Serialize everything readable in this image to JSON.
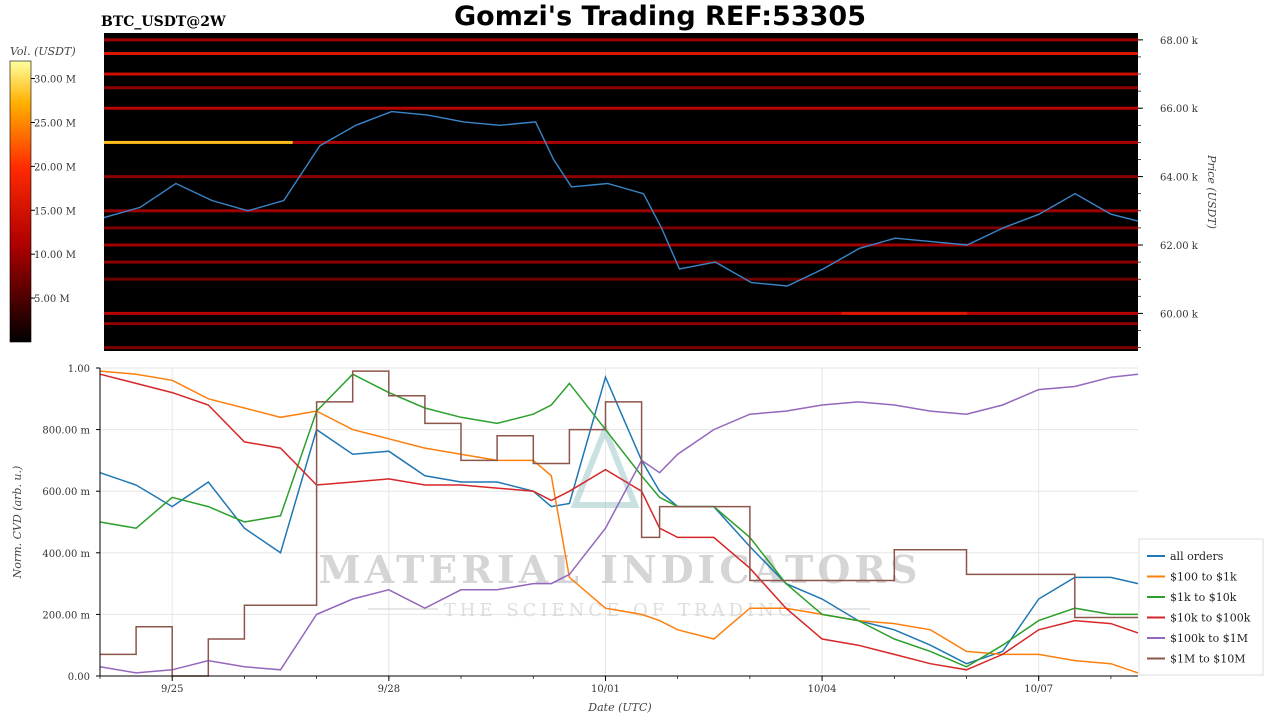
{
  "header": {
    "title": "Gomzi's Trading REF:53305",
    "symbol": "BTC_USDT@2W"
  },
  "watermark": {
    "main": "MATERIAL INDICATORS",
    "sub": "THE SCIENCE OF TRADING"
  },
  "colors": {
    "heatmap_bg": "#000000",
    "price_line": "#3a86c8",
    "all_orders": "#1f77b4",
    "r100_1k": "#ff7f0e",
    "r1k_10k": "#2ca02c",
    "r10k_100k": "#d62728",
    "r100k_1m": "#9467bd",
    "r1m_10m": "#8c564b"
  },
  "chart_data": [
    {
      "type": "heatmap",
      "colorbar_label": "Vol. (USDT)",
      "colorbar_ticks": [
        "5.00 M",
        "10.00 M",
        "15.00 M",
        "20.00 M",
        "25.00 M",
        "30.00 M"
      ],
      "colorbar_values": [
        5,
        10,
        15,
        20,
        25,
        30
      ],
      "colorbar_range": [
        0,
        32
      ],
      "ylabel": "Price (USDT)",
      "y_ticks": [
        "60.00 k",
        "62.00 k",
        "64.00 k",
        "66.00 k",
        "68.00 k"
      ],
      "y_tick_values": [
        60000,
        62000,
        64000,
        66000,
        68000
      ],
      "ylim": [
        58900,
        68200
      ],
      "xlim": [
        "2024-09-24T00:00",
        "2024-10-08T09:00"
      ],
      "price_series": {
        "x": [
          "2024-09-24T00:00",
          "2024-09-24T12:00",
          "2024-09-25T00:00",
          "2024-09-25T12:00",
          "2024-09-26T00:00",
          "2024-09-26T12:00",
          "2024-09-27T00:00",
          "2024-09-27T12:00",
          "2024-09-28T00:00",
          "2024-09-28T12:00",
          "2024-09-29T00:00",
          "2024-09-29T12:00",
          "2024-09-30T00:00",
          "2024-09-30T06:00",
          "2024-09-30T12:00",
          "2024-10-01T00:00",
          "2024-10-01T12:00",
          "2024-10-01T18:00",
          "2024-10-02T00:00",
          "2024-10-02T12:00",
          "2024-10-03T00:00",
          "2024-10-03T12:00",
          "2024-10-04T00:00",
          "2024-10-04T12:00",
          "2024-10-05T00:00",
          "2024-10-05T12:00",
          "2024-10-06T00:00",
          "2024-10-06T12:00",
          "2024-10-07T00:00",
          "2024-10-07T12:00",
          "2024-10-08T00:00",
          "2024-10-08T09:00"
        ],
        "y": [
          62800,
          63100,
          63800,
          63300,
          63000,
          63300,
          64900,
          65500,
          65900,
          65800,
          65600,
          65500,
          65600,
          64500,
          63700,
          63800,
          63500,
          62500,
          61300,
          61500,
          60900,
          60800,
          61300,
          61900,
          62200,
          62100,
          62000,
          62500,
          62900,
          63500,
          62900,
          62700
        ]
      },
      "bands": [
        {
          "price": 68000,
          "from": "2024-09-24T00:00",
          "to": "2024-10-08T09:00",
          "value": 10
        },
        {
          "price": 67600,
          "from": "2024-09-24T00:00",
          "to": "2024-10-08T09:00",
          "value": 16
        },
        {
          "price": 67000,
          "from": "2024-09-24T00:00",
          "to": "2024-10-08T09:00",
          "value": 14
        },
        {
          "price": 66600,
          "from": "2024-09-24T00:00",
          "to": "2024-10-08T09:00",
          "value": 9
        },
        {
          "price": 66000,
          "from": "2024-09-24T00:00",
          "to": "2024-10-08T09:00",
          "value": 12
        },
        {
          "price": 65000,
          "from": "2024-09-24T00:00",
          "to": "2024-09-26T15:00",
          "value": 28
        },
        {
          "price": 65000,
          "from": "2024-09-26T15:00",
          "to": "2024-10-08T09:00",
          "value": 11
        },
        {
          "price": 64000,
          "from": "2024-09-24T00:00",
          "to": "2024-10-08T09:00",
          "value": 9
        },
        {
          "price": 63000,
          "from": "2024-09-24T00:00",
          "to": "2024-10-08T09:00",
          "value": 10
        },
        {
          "price": 62500,
          "from": "2024-09-24T00:00",
          "to": "2024-10-08T09:00",
          "value": 8
        },
        {
          "price": 62000,
          "from": "2024-09-24T00:00",
          "to": "2024-10-08T09:00",
          "value": 10
        },
        {
          "price": 61500,
          "from": "2024-09-24T00:00",
          "to": "2024-10-08T09:00",
          "value": 9
        },
        {
          "price": 61000,
          "from": "2024-09-24T00:00",
          "to": "2024-10-08T09:00",
          "value": 7
        },
        {
          "price": 60000,
          "from": "2024-09-24T00:00",
          "to": "2024-10-08T09:00",
          "value": 12
        },
        {
          "price": 60000,
          "from": "2024-10-04T06:00",
          "to": "2024-10-06T00:00",
          "value": 16
        },
        {
          "price": 59700,
          "from": "2024-09-24T00:00",
          "to": "2024-10-08T09:00",
          "value": 9
        },
        {
          "price": 59000,
          "from": "2024-09-24T00:00",
          "to": "2024-10-08T09:00",
          "value": 8
        }
      ]
    },
    {
      "type": "line",
      "ylabel": "Norm. CVD (arb. u.)",
      "xlabel": "Date (UTC)",
      "x_ticks": [
        "9/25",
        "9/28",
        "10/01",
        "10/04",
        "10/07"
      ],
      "x_tick_values": [
        "2024-09-25T00:00",
        "2024-09-28T00:00",
        "2024-10-01T00:00",
        "2024-10-04T00:00",
        "2024-10-07T00:00"
      ],
      "y_ticks": [
        "0.00",
        "200.00 m",
        "400.00 m",
        "600.00 m",
        "800.00 m",
        "1.00"
      ],
      "y_tick_values": [
        0,
        0.2,
        0.4,
        0.6,
        0.8,
        1.0
      ],
      "ylim": [
        0,
        1
      ],
      "xlim": [
        "2024-09-24T00:00",
        "2024-10-08T09:00"
      ],
      "grid": true,
      "legend_position": "bottom-right",
      "x": [
        "2024-09-24T00:00",
        "2024-09-24T12:00",
        "2024-09-25T00:00",
        "2024-09-25T12:00",
        "2024-09-26T00:00",
        "2024-09-26T12:00",
        "2024-09-27T00:00",
        "2024-09-27T12:00",
        "2024-09-28T00:00",
        "2024-09-28T12:00",
        "2024-09-29T00:00",
        "2024-09-29T12:00",
        "2024-09-30T00:00",
        "2024-09-30T06:00",
        "2024-09-30T12:00",
        "2024-10-01T00:00",
        "2024-10-01T12:00",
        "2024-10-01T18:00",
        "2024-10-02T00:00",
        "2024-10-02T12:00",
        "2024-10-03T00:00",
        "2024-10-03T12:00",
        "2024-10-04T00:00",
        "2024-10-04T12:00",
        "2024-10-05T00:00",
        "2024-10-05T12:00",
        "2024-10-06T00:00",
        "2024-10-06T12:00",
        "2024-10-07T00:00",
        "2024-10-07T12:00",
        "2024-10-08T00:00",
        "2024-10-08T09:00"
      ],
      "series": [
        {
          "name": "all orders",
          "values": [
            0.66,
            0.62,
            0.55,
            0.63,
            0.48,
            0.4,
            0.8,
            0.72,
            0.73,
            0.65,
            0.63,
            0.63,
            0.6,
            0.55,
            0.56,
            0.97,
            0.7,
            0.6,
            0.55,
            0.55,
            0.42,
            0.3,
            0.25,
            0.18,
            0.15,
            0.1,
            0.04,
            0.08,
            0.25,
            0.32,
            0.32,
            0.3
          ]
        },
        {
          "name": "$100 to $1k",
          "values": [
            0.99,
            0.98,
            0.96,
            0.9,
            0.87,
            0.84,
            0.86,
            0.8,
            0.77,
            0.74,
            0.72,
            0.7,
            0.7,
            0.65,
            0.32,
            0.22,
            0.2,
            0.18,
            0.15,
            0.12,
            0.22,
            0.22,
            0.2,
            0.18,
            0.17,
            0.15,
            0.08,
            0.07,
            0.07,
            0.05,
            0.04,
            0.01
          ]
        },
        {
          "name": "$1k to $10k",
          "values": [
            0.5,
            0.48,
            0.58,
            0.55,
            0.5,
            0.52,
            0.86,
            0.98,
            0.92,
            0.87,
            0.84,
            0.82,
            0.85,
            0.88,
            0.95,
            0.8,
            0.65,
            0.58,
            0.55,
            0.55,
            0.45,
            0.3,
            0.2,
            0.18,
            0.12,
            0.08,
            0.03,
            0.1,
            0.18,
            0.22,
            0.2,
            0.2
          ]
        },
        {
          "name": "$10k to $100k",
          "values": [
            0.98,
            0.95,
            0.92,
            0.88,
            0.76,
            0.74,
            0.62,
            0.63,
            0.64,
            0.62,
            0.62,
            0.61,
            0.6,
            0.57,
            0.6,
            0.67,
            0.6,
            0.48,
            0.45,
            0.45,
            0.35,
            0.22,
            0.12,
            0.1,
            0.07,
            0.04,
            0.02,
            0.07,
            0.15,
            0.18,
            0.17,
            0.14
          ]
        },
        {
          "name": "$100k to $1M",
          "values": [
            0.03,
            0.01,
            0.02,
            0.05,
            0.03,
            0.02,
            0.2,
            0.25,
            0.28,
            0.22,
            0.28,
            0.28,
            0.3,
            0.3,
            0.33,
            0.48,
            0.7,
            0.66,
            0.72,
            0.8,
            0.85,
            0.86,
            0.88,
            0.89,
            0.88,
            0.86,
            0.85,
            0.88,
            0.93,
            0.94,
            0.97,
            0.98
          ]
        },
        {
          "name": "$1M to $10M",
          "values": [
            0.07,
            0.16,
            0.0,
            0.12,
            0.23,
            0.23,
            0.89,
            0.99,
            0.91,
            0.82,
            0.7,
            0.78,
            0.69,
            0.69,
            0.8,
            0.89,
            0.45,
            0.55,
            0.55,
            0.55,
            0.31,
            0.31,
            0.31,
            0.31,
            0.41,
            0.41,
            0.33,
            0.33,
            0.33,
            0.19,
            0.19,
            0.19
          ]
        }
      ]
    }
  ]
}
